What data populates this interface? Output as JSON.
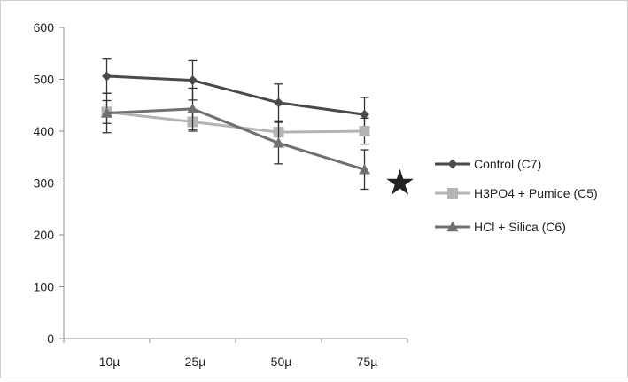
{
  "chart_data": {
    "type": "line",
    "title": "",
    "xlabel": "",
    "ylabel": "",
    "categories": [
      "10µ",
      "25µ",
      "50µ",
      "75µ"
    ],
    "ylim": [
      0,
      600
    ],
    "yticks": [
      0,
      100,
      200,
      300,
      400,
      500,
      600
    ],
    "grid": false,
    "legend_position": "right",
    "series": [
      {
        "name": "Control (C7)",
        "values": [
          506,
          498,
          455,
          432
        ],
        "errors": [
          33,
          38,
          36,
          33
        ],
        "color": "#4a4a4a",
        "marker": "diamond"
      },
      {
        "name": "H3PO4 + Pumice (C5)",
        "values": [
          437,
          418,
          398,
          400
        ],
        "errors": [
          22,
          18,
          22,
          25
        ],
        "color": "#b4b4b4",
        "marker": "square"
      },
      {
        "name": "HCl + Silica (C6)",
        "values": [
          435,
          443,
          377,
          326
        ],
        "errors": [
          38,
          40,
          40,
          38
        ],
        "color": "#707070",
        "marker": "triangle"
      }
    ],
    "annotations": [
      {
        "symbol": "★",
        "near_category": "75µ",
        "meaning": "significance marker"
      }
    ]
  }
}
